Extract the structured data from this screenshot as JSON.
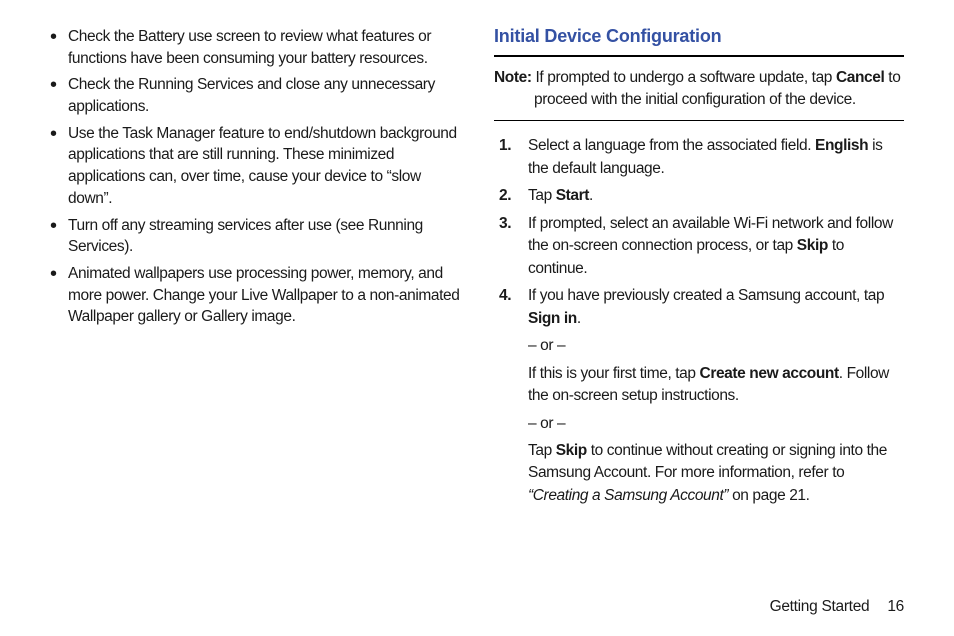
{
  "left": {
    "bullets": [
      "Check the Battery use screen to review what features or functions have been consuming your battery resources.",
      "Check the Running Services and close any unnecessary applications.",
      "Use the Task Manager feature to end/shutdown background applications that are still running. These minimized applications can, over time, cause your device to “slow down”.",
      "Turn off any streaming services after use (see Running Services).",
      "Animated wallpapers use processing power, memory, and more power. Change your Live Wallpaper to a non-animated Wallpaper gallery or Gallery image."
    ]
  },
  "right": {
    "heading": "Initial Device Configuration",
    "note_label": "Note:",
    "note_body_1": " If prompted to undergo a software update, tap ",
    "note_bold_1": "Cancel",
    "note_body_2": " to proceed with the initial configuration of the device.",
    "steps": {
      "s1": {
        "num": "1.",
        "t1": "Select a language from the associated field. ",
        "b1": "English",
        "t2": " is the default language."
      },
      "s2": {
        "num": "2.",
        "t1": "Tap ",
        "b1": "Start",
        "t2": "."
      },
      "s3": {
        "num": "3.",
        "t1": "If prompted, select an available Wi-Fi network and follow the on-screen connection process, or tap ",
        "b1": "Skip",
        "t2": " to continue."
      },
      "s4": {
        "num": "4.",
        "t1": "If you have previously created a Samsung account, tap ",
        "b1": "Sign in",
        "t2": ".",
        "or1": "– or –",
        "p2a": "If this is your first time, tap ",
        "p2b": "Create new account",
        "p2c": ". Follow the on-screen setup instructions.",
        "or2": "– or –",
        "p3a": "Tap ",
        "p3b": "Skip",
        "p3c": " to continue without creating or signing into the Samsung Account. For more information, refer to ",
        "p3ref": "“Creating a Samsung Account” ",
        "p3d": " on page 21."
      }
    }
  },
  "footer": {
    "section": "Getting Started",
    "page": "16"
  },
  "colors": {
    "heading": "#3451a3",
    "text": "#1a1a1a",
    "rule": "#000000",
    "background": "#ffffff"
  }
}
